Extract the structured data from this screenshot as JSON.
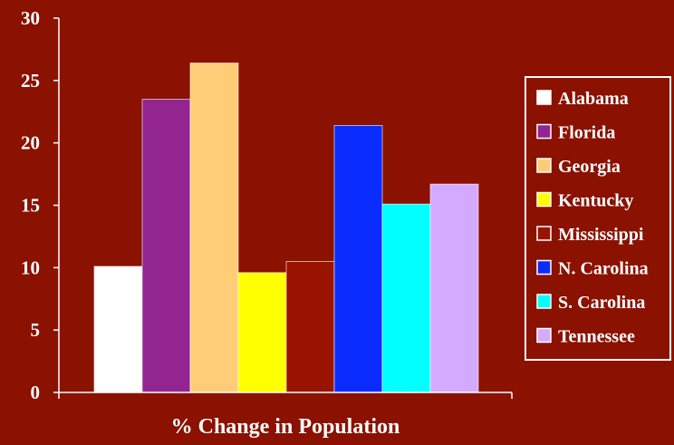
{
  "chart_data": {
    "type": "bar",
    "title": "",
    "xlabel": "% Change in Population",
    "ylabel": "",
    "ylim": [
      0,
      30
    ],
    "yticks": [
      0,
      5,
      10,
      15,
      20,
      25,
      30
    ],
    "grid": false,
    "legend_position": "right",
    "categories": [
      "Alabama",
      "Florida",
      "Georgia",
      "Kentucky",
      "Mississippi",
      "N. Carolina",
      "S. Carolina",
      "Tennessee"
    ],
    "values": [
      10.1,
      23.5,
      26.4,
      9.6,
      10.5,
      21.4,
      15.1,
      16.7
    ],
    "colors": [
      "#ffffff",
      "#922590",
      "#ffcc77",
      "#ffff00",
      "#9a1300",
      "#0a2cff",
      "#00ffff",
      "#d4aaff"
    ],
    "background_color": "#8b1100"
  }
}
